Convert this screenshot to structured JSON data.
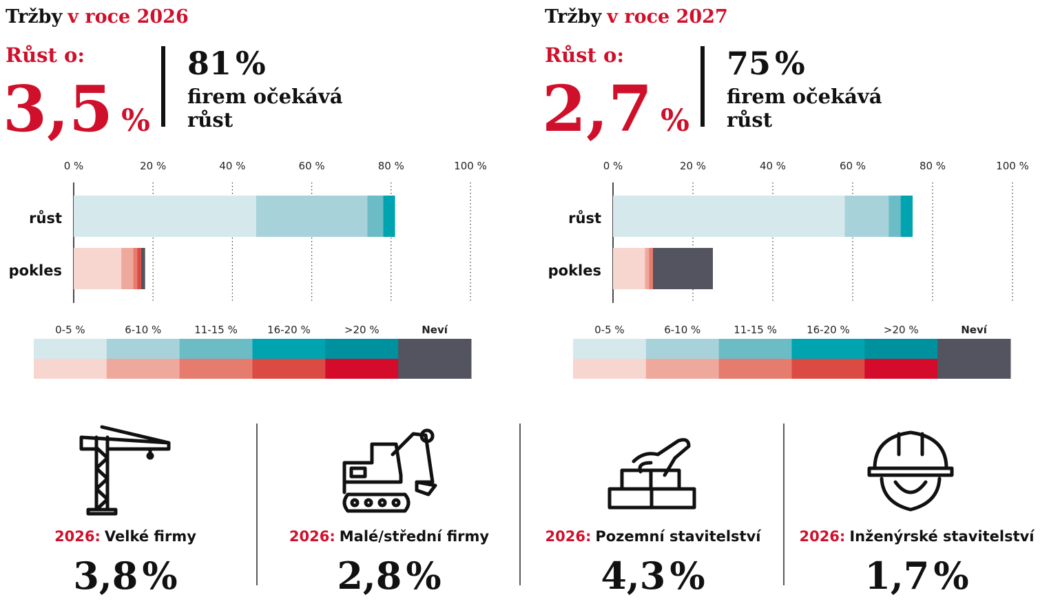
{
  "chart_data": [
    {
      "type": "bar",
      "orientation": "horizontal",
      "title_prefix": "Tržby",
      "title_highlight": "v roce 2026",
      "growth_label": "Růst o:",
      "growth_value": "3,5",
      "growth_unit": "%",
      "share_value": "81",
      "share_unit": "%",
      "share_text_1": "firem očekává",
      "share_text_2": "růst",
      "categories": [
        "růst",
        "pokles"
      ],
      "series": [
        {
          "name": "0-5 %",
          "colors": [
            "#d5e8ec",
            "#f8d6d0"
          ],
          "values": [
            46,
            12
          ]
        },
        {
          "name": "6-10 %",
          "colors": [
            "#a8d2d9",
            "#eea89c"
          ],
          "values": [
            28,
            3
          ]
        },
        {
          "name": "11-15 %",
          "colors": [
            "#6cbcc6",
            "#e57c6e"
          ],
          "values": [
            4,
            1
          ]
        },
        {
          "name": "16-20  %",
          "colors": [
            "#00a3b0",
            "#dc4b43"
          ],
          "values": [
            3,
            1
          ]
        },
        {
          "name": ">20 %",
          "colors": [
            "#00919f",
            "#d50b2b"
          ],
          "values": [
            0,
            0
          ]
        },
        {
          "name": "Neví",
          "colors": [
            "#545460",
            "#545460"
          ],
          "values": [
            0,
            1
          ]
        }
      ],
      "xlim": [
        0,
        100
      ],
      "xticks": [
        {
          "value": 0,
          "label": "0 %"
        },
        {
          "value": 20,
          "label": "20 %"
        },
        {
          "value": 40,
          "label": "40 %"
        },
        {
          "value": 60,
          "label": "60 %"
        },
        {
          "value": 80,
          "label": "80 %"
        },
        {
          "value": 100,
          "label": "100 %"
        }
      ],
      "grid": true
    },
    {
      "type": "bar",
      "orientation": "horizontal",
      "title_prefix": "Tržby",
      "title_highlight": "v roce 2027",
      "growth_label": "Růst o:",
      "growth_value": "2,7",
      "growth_unit": "%",
      "share_value": "75",
      "share_unit": "%",
      "share_text_1": "firem očekává",
      "share_text_2": "růst",
      "categories": [
        "růst",
        "pokles"
      ],
      "series": [
        {
          "name": "0-5 %",
          "colors": [
            "#d5e8ec",
            "#f8d6d0"
          ],
          "values": [
            58,
            8
          ]
        },
        {
          "name": "6-10 %",
          "colors": [
            "#a8d2d9",
            "#eea89c"
          ],
          "values": [
            11,
            1
          ]
        },
        {
          "name": "11-15 %",
          "colors": [
            "#6cbcc6",
            "#e57c6e"
          ],
          "values": [
            3,
            1
          ]
        },
        {
          "name": "16-20  %",
          "colors": [
            "#00a3b0",
            "#dc4b43"
          ],
          "values": [
            3,
            0
          ]
        },
        {
          "name": ">20 %",
          "colors": [
            "#00919f",
            "#d50b2b"
          ],
          "values": [
            0,
            0
          ]
        },
        {
          "name": "Neví",
          "colors": [
            "#545460",
            "#545460"
          ],
          "values": [
            0,
            15
          ]
        }
      ],
      "xlim": [
        0,
        100
      ],
      "xticks": [
        {
          "value": 0,
          "label": "0 %"
        },
        {
          "value": 20,
          "label": "20 %"
        },
        {
          "value": 40,
          "label": "40 %"
        },
        {
          "value": 60,
          "label": "60 %"
        },
        {
          "value": 80,
          "label": "80 %"
        },
        {
          "value": 100,
          "label": "100 %"
        }
      ],
      "grid": true
    }
  ],
  "segments": [
    {
      "year": "2026:",
      "name": "Velké firmy",
      "value": "3,8",
      "unit": "%"
    },
    {
      "year": "2026:",
      "name": "Malé/střední firmy",
      "value": "2,8",
      "unit": "%"
    },
    {
      "year": "2026:",
      "name": "Pozemní stavitelství",
      "value": "4,3",
      "unit": "%"
    },
    {
      "year": "2026:",
      "name": "Inženýrské stavitelství",
      "value": "1,7",
      "unit": "%"
    }
  ]
}
